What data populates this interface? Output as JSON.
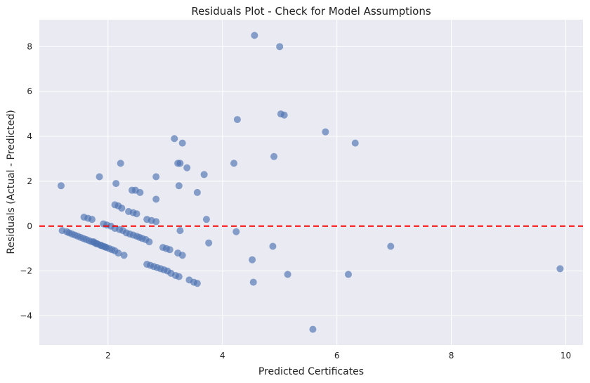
{
  "chart_data": {
    "type": "scatter",
    "title": "Residuals Plot - Check for Model Assumptions",
    "xlabel": "Predicted Certificates",
    "ylabel": "Residuals (Actual - Predicted)",
    "xlim": [
      0.8,
      10.3
    ],
    "ylim": [
      -5.3,
      9.2
    ],
    "xticks": [
      2,
      4,
      6,
      8,
      10
    ],
    "yticks": [
      -4,
      -2,
      0,
      2,
      4,
      6,
      8
    ],
    "xtick_labels": [
      "2",
      "4",
      "6",
      "8",
      "10"
    ],
    "ytick_labels": [
      "−4",
      "−2",
      "0",
      "2",
      "4",
      "6",
      "8"
    ],
    "grid": true,
    "reference_line": {
      "y": 0,
      "style": "dashed",
      "color": "#ff0000"
    },
    "point_color": "#4c72b0",
    "background_color": "#eaeaf2",
    "points": [
      [
        1.18,
        1.8
      ],
      [
        1.2,
        -0.2
      ],
      [
        1.28,
        -0.25
      ],
      [
        1.32,
        -0.3
      ],
      [
        1.37,
        -0.35
      ],
      [
        1.42,
        -0.4
      ],
      [
        1.47,
        -0.45
      ],
      [
        1.52,
        -0.5
      ],
      [
        1.57,
        -0.55
      ],
      [
        1.62,
        -0.6
      ],
      [
        1.67,
        -0.65
      ],
      [
        1.72,
        -0.7
      ],
      [
        1.77,
        -0.75
      ],
      [
        1.82,
        -0.8
      ],
      [
        1.87,
        -0.85
      ],
      [
        1.92,
        -0.9
      ],
      [
        1.97,
        -0.95
      ],
      [
        2.02,
        -1.0
      ],
      [
        2.07,
        -1.05
      ],
      [
        2.12,
        -1.1
      ],
      [
        1.75,
        -0.7
      ],
      [
        1.8,
        -0.78
      ],
      [
        1.88,
        -0.86
      ],
      [
        1.95,
        -0.93
      ],
      [
        2.18,
        -1.2
      ],
      [
        2.28,
        -1.3
      ],
      [
        1.58,
        0.4
      ],
      [
        1.65,
        0.35
      ],
      [
        1.72,
        0.3
      ],
      [
        1.85,
        2.2
      ],
      [
        1.92,
        0.1
      ],
      [
        1.98,
        0.05
      ],
      [
        2.05,
        0.0
      ],
      [
        2.12,
        0.95
      ],
      [
        2.18,
        0.9
      ],
      [
        2.24,
        0.8
      ],
      [
        2.14,
        1.9
      ],
      [
        2.22,
        2.8
      ],
      [
        2.12,
        -0.1
      ],
      [
        2.2,
        -0.15
      ],
      [
        2.26,
        -0.2
      ],
      [
        2.32,
        -0.3
      ],
      [
        2.38,
        -0.35
      ],
      [
        2.44,
        -0.4
      ],
      [
        2.5,
        -0.45
      ],
      [
        2.55,
        -0.5
      ],
      [
        2.6,
        -0.55
      ],
      [
        2.66,
        -0.6
      ],
      [
        2.36,
        0.65
      ],
      [
        2.44,
        0.6
      ],
      [
        2.5,
        0.55
      ],
      [
        2.56,
        1.5
      ],
      [
        2.42,
        1.6
      ],
      [
        2.48,
        1.6
      ],
      [
        2.68,
        0.3
      ],
      [
        2.76,
        0.25
      ],
      [
        2.84,
        0.2
      ],
      [
        2.72,
        -0.7
      ],
      [
        2.84,
        1.2
      ],
      [
        2.84,
        2.2
      ],
      [
        2.68,
        -1.7
      ],
      [
        2.74,
        -1.75
      ],
      [
        2.8,
        -1.8
      ],
      [
        2.86,
        -1.85
      ],
      [
        2.92,
        -1.9
      ],
      [
        2.98,
        -1.95
      ],
      [
        3.04,
        -2.0
      ],
      [
        3.1,
        -2.1
      ],
      [
        3.18,
        -2.2
      ],
      [
        3.24,
        -2.25
      ],
      [
        3.42,
        -2.4
      ],
      [
        3.5,
        -2.5
      ],
      [
        3.56,
        -2.55
      ],
      [
        2.96,
        -0.95
      ],
      [
        3.02,
        -1.0
      ],
      [
        3.08,
        -1.05
      ],
      [
        3.22,
        -1.2
      ],
      [
        3.3,
        -1.3
      ],
      [
        3.26,
        -0.2
      ],
      [
        3.16,
        3.9
      ],
      [
        3.3,
        3.7
      ],
      [
        3.22,
        2.8
      ],
      [
        3.26,
        2.8
      ],
      [
        3.38,
        2.6
      ],
      [
        3.24,
        1.8
      ],
      [
        3.56,
        1.5
      ],
      [
        3.68,
        2.3
      ],
      [
        3.72,
        0.3
      ],
      [
        3.76,
        -0.75
      ],
      [
        4.2,
        2.8
      ],
      [
        4.26,
        4.75
      ],
      [
        4.24,
        -0.25
      ],
      [
        4.56,
        8.5
      ],
      [
        4.52,
        -1.5
      ],
      [
        4.54,
        -2.5
      ],
      [
        4.9,
        3.1
      ],
      [
        4.88,
        -0.9
      ],
      [
        5.0,
        8.0
      ],
      [
        5.02,
        5.0
      ],
      [
        5.08,
        4.95
      ],
      [
        5.14,
        -2.15
      ],
      [
        5.58,
        -4.6
      ],
      [
        5.8,
        4.2
      ],
      [
        6.2,
        -2.15
      ],
      [
        6.32,
        3.7
      ],
      [
        6.94,
        -0.9
      ],
      [
        9.9,
        -1.9
      ]
    ]
  }
}
